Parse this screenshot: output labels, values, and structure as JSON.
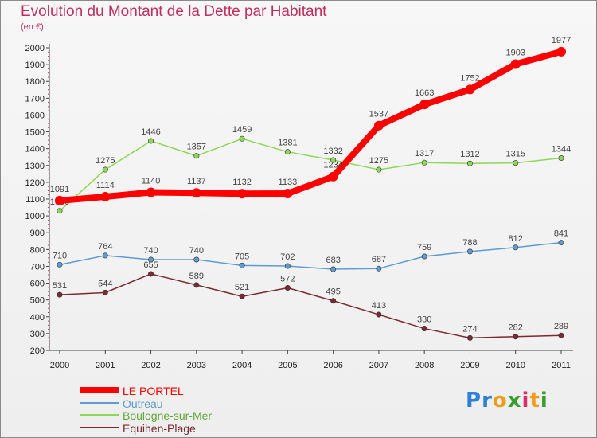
{
  "chart_data": {
    "type": "line",
    "title": "Evolution du Montant de la Dette par Habitant",
    "subtitle": "(en €)",
    "x": [
      "2000",
      "2001",
      "2002",
      "2003",
      "2004",
      "2005",
      "2006",
      "2007",
      "2008",
      "2009",
      "2010",
      "2011"
    ],
    "ylim": [
      200,
      2000
    ],
    "yticks": [
      200,
      300,
      400,
      500,
      600,
      700,
      800,
      900,
      1000,
      1100,
      1200,
      1300,
      1400,
      1500,
      1600,
      1700,
      1800,
      1900,
      2000
    ],
    "grid": false,
    "legend_placement": "bottom-left",
    "series": [
      {
        "name": "LE PORTEL",
        "color": "#ff0000",
        "values": [
          1091,
          1114,
          1140,
          1137,
          1132,
          1133,
          1234,
          1537,
          1663,
          1752,
          1903,
          1977
        ]
      },
      {
        "name": "Outreau",
        "color": "#5f9bd0",
        "values": [
          710,
          764,
          740,
          740,
          705,
          702,
          683,
          687,
          759,
          788,
          812,
          841
        ]
      },
      {
        "name": "Boulogne-sur-Mer",
        "color": "#8ed65a",
        "values": [
          1030,
          1275,
          1446,
          1357,
          1459,
          1381,
          1332,
          1275,
          1317,
          1312,
          1315,
          1344
        ]
      },
      {
        "name": "Equihen-Plage",
        "color": "#7a2a30",
        "values": [
          531,
          544,
          655,
          589,
          521,
          572,
          495,
          413,
          330,
          274,
          282,
          289
        ]
      }
    ]
  },
  "logo": {
    "letters": [
      {
        "char": "P",
        "color": "#2f7fd6"
      },
      {
        "char": "r",
        "color": "#2f7fd6"
      },
      {
        "char": "o",
        "color": "#f29a1a"
      },
      {
        "char": "x",
        "color": "#3a9e2f"
      },
      {
        "char": "i",
        "color": "#d62f6a"
      },
      {
        "char": "t",
        "color": "#f29a1a"
      },
      {
        "char": "i",
        "color": "#3a9e2f"
      }
    ]
  }
}
